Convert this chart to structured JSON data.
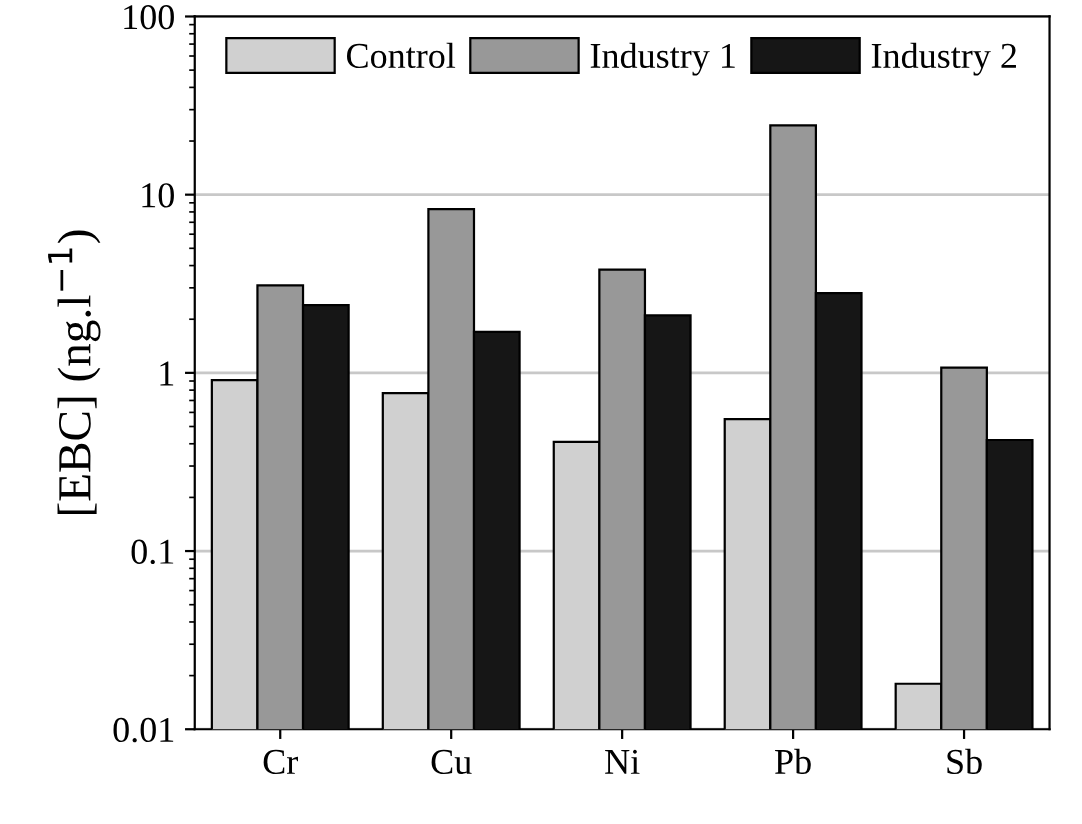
{
  "chart_data": {
    "type": "bar",
    "ylabel": "[EBC] (ng.l$^{−1}$)",
    "categories": [
      "Cr",
      "Cu",
      "Ni",
      "Pb",
      "Sb"
    ],
    "series": [
      {
        "name": "Control",
        "color": "#d0d0d0",
        "values": [
          0.91,
          0.77,
          0.41,
          0.55,
          0.018
        ]
      },
      {
        "name": "Industry 1",
        "color": "#989898",
        "values": [
          3.1,
          8.3,
          3.8,
          24.5,
          1.07
        ]
      },
      {
        "name": "Industry 2",
        "color": "#161616",
        "values": [
          2.4,
          1.7,
          2.1,
          2.8,
          0.42
        ]
      }
    ],
    "log": true,
    "ylim": [
      0.01,
      100
    ],
    "yticks": [
      0.01,
      0.1,
      1,
      10,
      100
    ],
    "grid": "y",
    "legend": "top"
  }
}
